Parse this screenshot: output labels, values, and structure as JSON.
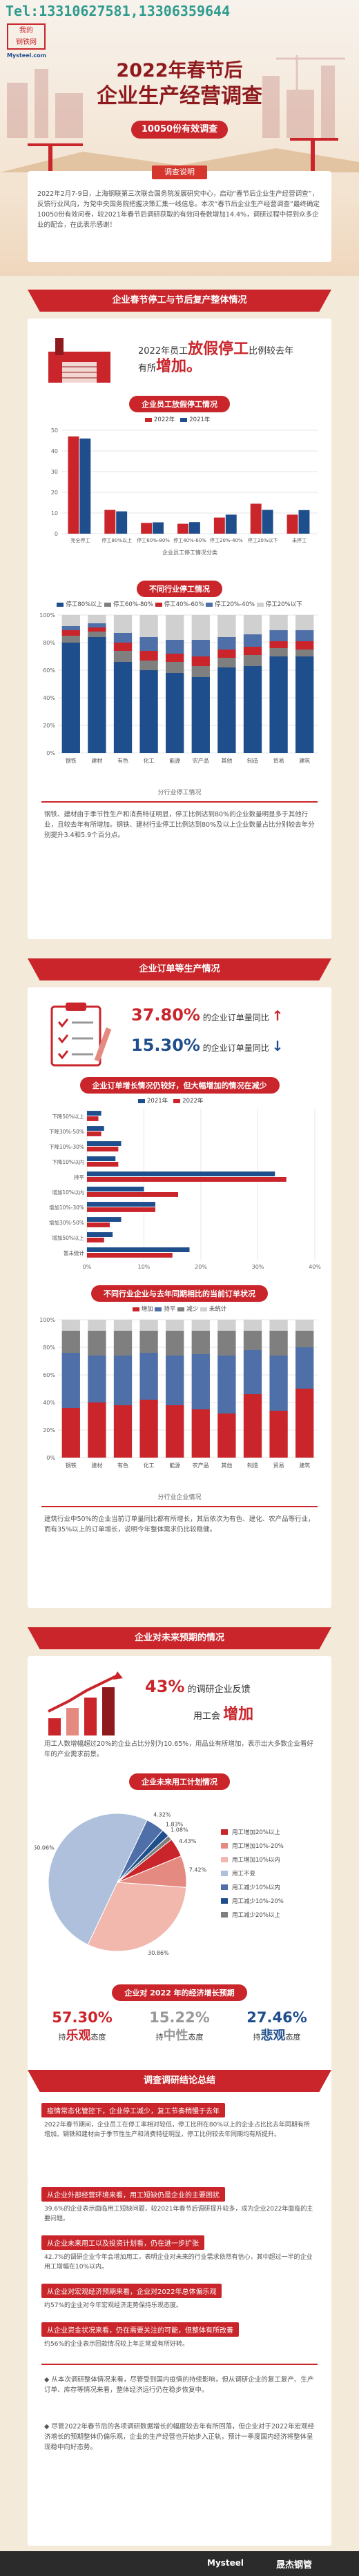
{
  "header": {
    "tel": "Tel:13310627581,13306359644",
    "brand_line1": "我的",
    "brand_line2": "钢铁网",
    "brand_sub": "Mysteel.com",
    "title_line1": "2022年春节后",
    "title_line2": "企业生产经营调查",
    "pill": "10050份有效调查"
  },
  "intro": {
    "tab": "调查说明",
    "text": "2022年2月7-9日，上海钢联第三次联合国务院发展研究中心，启动“春节后企业生产经营调查”，反馈行业风向，为党中央国务院把握决策汇集一线信息。本次“春节后企业生产经营调查”最终确定10050份有效问卷，较2021年春节后调研获取的有效问卷数增加14.4%，调研过程中得到众多企业的配合，在此表示感谢！"
  },
  "section1": {
    "banner": "企业春节停工与节后复产整体情况",
    "headline_pre": "2022年员工",
    "headline_key": "放假停工",
    "headline_mid": "比例较去年",
    "headline_suf": "有所",
    "headline_key2": "增加。",
    "subtitle1": "企业员工放假停工情况",
    "subtitle2": "不同行业停工情况",
    "chart2_caption": "分行业停工情况",
    "note": "钢铁、建材由于季节性生产和消费特征明显，停工比例达到80%的企业数量明显多于其他行业，且较去年有所增加。钢铁、建材行业停工比例达到80%及以上企业数量占比分别较去年分别提升3.4和5.9个百分点。"
  },
  "section2": {
    "banner": "企业订单等生产情况",
    "stat1_value": "37.80%",
    "stat1_text": "的企业订单量同比",
    "stat1_arrow": "↑",
    "stat2_value": "15.30%",
    "stat2_text": "的企业订单量同比",
    "stat2_arrow": "↓",
    "subtitle1": "企业订单增长情况仍较好，但大幅增加的情况在减少",
    "subtitle2": "不同行业企业与去年同期相比的当前订单状况",
    "chart4_caption": "分行业企业情况",
    "note": "建筑行业中50%的企业当前订单量同比都有所增长，其后依次为有色、建化、农产品等行业，而有35%以上的订单增长，说明今年整体需求仍比较稳健。"
  },
  "section3": {
    "banner": "企业对未来预期的情况",
    "headline_pct": "43%",
    "headline_text": "的调研企业反馈",
    "headline_sub_pre": "用工会",
    "headline_key": "增加",
    "note": "用工人数增幅超过20%的企业占比分别为10.65%，用品业有所增加，表示出大多数企业看好年的产业需求前景。",
    "subtitle1": "企业未来用工计划情况"
  },
  "section4": {
    "subtitle": "企业对 2022 年的经济增长预期",
    "p1_value": "57.30%",
    "p1_pre": "持",
    "p1_key": "乐观",
    "p1_suf": "态度",
    "p2_value": "15.22%",
    "p2_pre": "持",
    "p2_key": "中性",
    "p2_suf": "态度",
    "p3_value": "27.46%",
    "p3_pre": "持",
    "p3_key": "悲观",
    "p3_suf": "态度"
  },
  "section5": {
    "banner": "调查调研结论总结",
    "f1_head": "疫情常态化管控下，企业停工减少，复工节奏稍慢于去年",
    "f1_body": "2022年春节期间，企业员工在停工率相对较低，停工比例在80%以上的企业占比比去年同期有所增加。钢铁和建材由于季节性生产和消费特征明显，停工比例较去年同期均有所提升。",
    "f2_head": "从企业外部经营环境来看，用工短缺仍是企业的主要困扰",
    "f2_body": "39.6%的企业表示面临用工短缺问题，较2021年春节后调研提升较多，成为企业2022年面临的主要问题。",
    "f3_head": "从企业未来用工以及投资计划看，仍在进一步扩张",
    "f3_body": "42.7%的调研企业今年会增加用工，表明企业对未来的行业需求依然有信心，其中超过一半的企业用工增幅在10%以内。",
    "f4_head": "从企业对宏观经济预期来看，企业对2022年总体偏乐观",
    "f4_body": "约57%的企业对今年宏观经济走势保持乐观态度。",
    "f5_head": "从企业资金状况来看，仍在需要关注的可能，但整体有所改善",
    "f5_body": "约56%的企业表示回款情况较上年正常或有所好转。",
    "b1": "从本次调研整体情况来看，尽管受到国内疫情的持续影响，但从调研企业的复工复产、生产订单、库存等情况来看，整体经济运行仍在稳步恢复中。",
    "b2": "尽管2022年春节后的各项调研数据增长的幅度较去年有所回落，但企业对于2022年宏观经济增长的预期整体仍偏乐观，企业的生产经营也开始步入正轨，预计一季度国内经济将整体呈现稳中向好态势。"
  },
  "footer": {
    "logo": "Mysteel",
    "logo2": "晟杰钢管"
  },
  "chart_data": [
    {
      "type": "bar",
      "title": "企业员工放假停工情况",
      "categories": [
        "完全停工",
        "停工80%以上",
        "停工60%-80%",
        "停工40%-60%",
        "停工20%-40%",
        "停工20%以下",
        "未停工"
      ],
      "series": [
        {
          "name": "2022年",
          "values": [
            47.0,
            11.5,
            5.2,
            4.8,
            7.8,
            14.5,
            9.2
          ],
          "color": "#c9252b"
        },
        {
          "name": "2021年",
          "values": [
            46.0,
            10.8,
            5.5,
            5.6,
            9.2,
            11.5,
            11.4
          ],
          "color": "#1f4e8c"
        }
      ],
      "xlabel": "企业员工停工情况分类",
      "ylim": [
        0,
        50
      ]
    },
    {
      "type": "bar",
      "title": "分行业停工情况",
      "categories": [
        "钢铁",
        "建材",
        "有色",
        "化工",
        "能源",
        "农产品",
        "其他",
        "制造",
        "贸易",
        "建筑"
      ],
      "series": [
        {
          "name": "停工80%以上",
          "values": [
            80,
            84,
            66,
            60,
            58,
            55,
            62,
            63,
            70,
            70
          ],
          "color": "#1f4e8c"
        },
        {
          "name": "停工60%-80%",
          "values": [
            5,
            4,
            8,
            7,
            8,
            8,
            7,
            8,
            6,
            5
          ],
          "color": "#7f7f7f"
        },
        {
          "name": "停工40%-60%",
          "values": [
            4,
            3,
            6,
            7,
            6,
            7,
            6,
            6,
            5,
            6
          ],
          "color": "#c9252b"
        },
        {
          "name": "停工20%-40%",
          "values": [
            3,
            3,
            7,
            10,
            10,
            12,
            9,
            9,
            8,
            8
          ],
          "color": "#4f6fa8"
        },
        {
          "name": "停工20%以下",
          "values": [
            8,
            6,
            13,
            16,
            18,
            18,
            16,
            14,
            11,
            11
          ],
          "color": "#d0d0d0"
        }
      ],
      "ylim": [
        0,
        100
      ]
    },
    {
      "type": "bar",
      "title": "企业订单增长情况仍较好，但大幅增加的情况在减少",
      "categories": [
        "下降50%以上",
        "下降30%-50%",
        "下降10%-30%",
        "下降10%以内",
        "持平",
        "增加10%以内",
        "增加10%-30%",
        "增加30%-50%",
        "增加50%以上",
        "暂未统计"
      ],
      "series": [
        {
          "name": "2021年",
          "values": [
            2.5,
            3.0,
            6.0,
            5.0,
            33.0,
            10.0,
            12.0,
            6.0,
            4.5,
            18.0
          ],
          "color": "#1f4e8c"
        },
        {
          "name": "2022年",
          "values": [
            2.0,
            2.5,
            5.5,
            5.5,
            35.0,
            16.0,
            12.0,
            4.0,
            3.0,
            15.0
          ],
          "color": "#c9252b"
        }
      ],
      "xlim": [
        0,
        40
      ]
    },
    {
      "type": "bar",
      "title": "不同行业企业与去年同期相比的当前订单状况",
      "categories": [
        "钢铁",
        "建材",
        "有色",
        "化工",
        "能源",
        "农产品",
        "其他",
        "制造",
        "贸易",
        "建筑"
      ],
      "series": [
        {
          "name": "增加",
          "values": [
            36,
            40,
            38,
            42,
            38,
            35,
            32,
            46,
            34,
            50
          ],
          "color": "#c9252b"
        },
        {
          "name": "持平",
          "values": [
            40,
            34,
            36,
            34,
            36,
            40,
            42,
            32,
            40,
            30
          ],
          "color": "#4f6fa8"
        },
        {
          "name": "减少",
          "values": [
            16,
            18,
            18,
            16,
            18,
            17,
            18,
            14,
            18,
            12
          ],
          "color": "#7f7f7f"
        },
        {
          "name": "未统计",
          "values": [
            8,
            8,
            8,
            8,
            8,
            8,
            8,
            8,
            8,
            8
          ],
          "color": "#d0d0d0"
        }
      ],
      "ylim": [
        0,
        100
      ]
    },
    {
      "type": "pie",
      "title": "企业未来用工计划情况",
      "labels": [
        "用工增加20%以上",
        "用工增加10%-20%",
        "用工增加10%以内",
        "用工不变",
        "用工减少10%以内",
        "用工减少10%-20%",
        "用工减少20%以上"
      ],
      "values": [
        4.43,
        7.42,
        30.86,
        50.06,
        4.32,
        1.83,
        1.08
      ],
      "value_labels": [
        "4.43%",
        "7.42%",
        "30.86%",
        "50.06%",
        "4.32%",
        "1.83%",
        "1.08%"
      ],
      "colors": [
        "#c9252b",
        "#e58a80",
        "#f2b7ad",
        "#aec0dc",
        "#4f6fa8",
        "#1f4e8c",
        "#7f7f7f"
      ]
    }
  ]
}
